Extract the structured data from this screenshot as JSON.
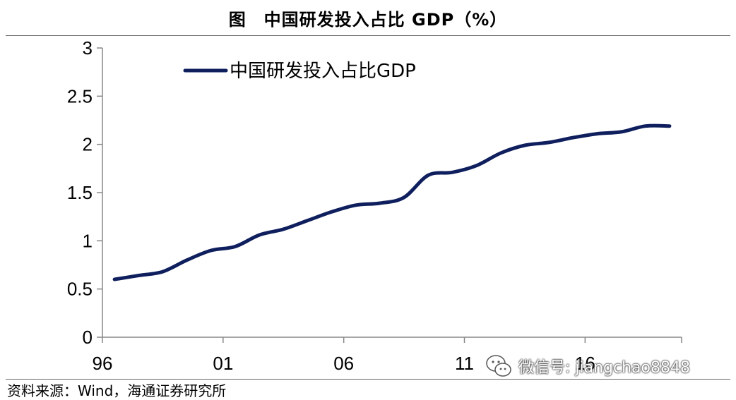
{
  "header": {
    "title": "图　中国研发投入占比 GDP（%）"
  },
  "footer": {
    "source": "资料来源：Wind，海通证券研究所"
  },
  "watermark": {
    "text": "微信号: jiangchao8848"
  },
  "chart_data": {
    "type": "line",
    "series_color": "#0f1f5e",
    "x": [
      1996,
      1997,
      1998,
      1999,
      2000,
      2001,
      2002,
      2003,
      2004,
      2005,
      2006,
      2007,
      2008,
      2009,
      2010,
      2011,
      2012,
      2013,
      2014,
      2015,
      2016,
      2017,
      2018,
      2019
    ],
    "series": [
      {
        "name": "中国研发投入占比GDP",
        "values": [
          0.6,
          0.64,
          0.68,
          0.8,
          0.9,
          0.94,
          1.06,
          1.12,
          1.21,
          1.3,
          1.37,
          1.39,
          1.45,
          1.68,
          1.71,
          1.78,
          1.91,
          1.99,
          2.02,
          2.07,
          2.11,
          2.13,
          2.19,
          2.19
        ]
      }
    ],
    "xticks": [
      1996,
      2001,
      2006,
      2011,
      2016
    ],
    "xtick_labels": [
      "96",
      "01",
      "06",
      "11",
      "16"
    ],
    "xlim": [
      1996,
      2020
    ],
    "ylim": [
      0,
      3
    ],
    "yticks": [
      0,
      0.5,
      1,
      1.5,
      2,
      2.5,
      3
    ],
    "ytick_labels": [
      "0",
      "0.5",
      "1",
      "1.5",
      "2",
      "2.5",
      "3"
    ],
    "legend_position": "top-left",
    "grid": false
  }
}
